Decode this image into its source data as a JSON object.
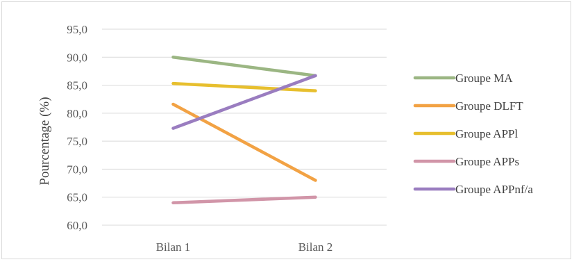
{
  "chart_data": {
    "type": "line",
    "title": "",
    "xlabel": "",
    "ylabel": "Pourcentage (%)",
    "categories": [
      "Bilan 1",
      "Bilan 2"
    ],
    "ylim": [
      60,
      95
    ],
    "yticks": [
      "60,0",
      "65,0",
      "70,0",
      "75,0",
      "80,0",
      "85,0",
      "90,0",
      "95,0"
    ],
    "grid": true,
    "legend_position": "right",
    "series": [
      {
        "name": "Groupe MA",
        "values": [
          90.0,
          86.7
        ],
        "color": "#9bb683"
      },
      {
        "name": "Groupe DLFT",
        "values": [
          81.6,
          68.0
        ],
        "color": "#f2a244"
      },
      {
        "name": "Groupe APPl",
        "values": [
          85.3,
          84.0
        ],
        "color": "#e7bf2e"
      },
      {
        "name": "Groupe APPs",
        "values": [
          64.0,
          65.0
        ],
        "color": "#d195a8"
      },
      {
        "name": "Groupe APPnf/a",
        "values": [
          77.3,
          86.7
        ],
        "color": "#9a7dc0"
      }
    ]
  }
}
